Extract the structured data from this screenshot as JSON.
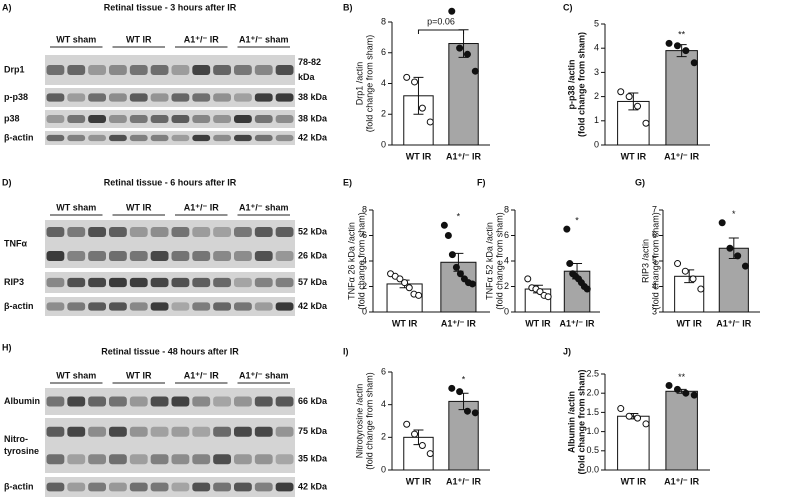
{
  "blots": [
    {
      "panel": "A)",
      "title": "Retinal tissue - 3 hours after IR",
      "groups": [
        "WT sham",
        "WT IR",
        "A1⁺/⁻ IR",
        "A1⁺/⁻ sham"
      ],
      "rows": [
        {
          "label": [
            "Drp1"
          ],
          "kda": [
            "78-82",
            "kDa"
          ]
        },
        {
          "label": [
            "p-p38"
          ],
          "kda": [
            "38 kDa"
          ]
        },
        {
          "label": [
            "p38"
          ],
          "kda": [
            "38 kDa"
          ]
        },
        {
          "label": [
            "β-actin"
          ],
          "kda": [
            "42 kDa"
          ]
        }
      ]
    },
    {
      "panel": "D)",
      "title": "Retinal tissue - 6 hours after IR",
      "groups": [
        "WT sham",
        "WT IR",
        "A1⁺/⁻ IR",
        "A1⁺/⁻ sham"
      ],
      "rows": [
        {
          "label": [
            "TNFα"
          ],
          "kda": [
            "52 kDa",
            "26 kDa"
          ]
        },
        {
          "label": [
            "RIP3"
          ],
          "kda": [
            "57 kDa"
          ]
        },
        {
          "label": [
            "β-actin"
          ],
          "kda": [
            "42 kDa"
          ]
        }
      ]
    },
    {
      "panel": "H)",
      "title": "Retinal tissue - 48 hours after IR",
      "groups": [
        "WT sham",
        "WT IR",
        "A1⁺/⁻ IR",
        "A1⁺/⁻ sham"
      ],
      "rows": [
        {
          "label": [
            "Albumin"
          ],
          "kda": [
            "66 kDa"
          ]
        },
        {
          "label": [
            "Nitro-",
            "tyrosine"
          ],
          "kda": [
            "75 kDa",
            "35 kDa"
          ]
        },
        {
          "label": [
            "β-actin"
          ],
          "kda": [
            "42 kDa"
          ]
        }
      ]
    }
  ],
  "chart_data": [
    {
      "type": "bar",
      "panel": "B)",
      "ylabel": [
        "Drp1 /actin",
        "(fold change from sham)"
      ],
      "categories": [
        "WT IR",
        "A1⁺/⁻ IR"
      ],
      "colors": [
        "#ffffff",
        "#a6a6a6"
      ],
      "values": [
        3.2,
        6.6
      ],
      "errors": [
        1.2,
        0.9
      ],
      "points": [
        [
          4.4,
          4.1,
          2.4,
          1.5
        ],
        [
          8.7,
          6.3,
          5.9,
          4.8
        ]
      ],
      "ylim": [
        0,
        8
      ],
      "yticks": [
        0,
        2,
        4,
        6,
        8
      ],
      "annotation": "p=0.06",
      "bracket": true
    },
    {
      "type": "bar",
      "panel": "C)",
      "ylabel": [
        "p-p38 /actin",
        "(fold change from sham)"
      ],
      "categories": [
        "WT IR",
        "A1⁺/⁻ IR"
      ],
      "colors": [
        "#ffffff",
        "#a6a6a6"
      ],
      "values": [
        1.8,
        3.9
      ],
      "errors": [
        0.35,
        0.25
      ],
      "points": [
        [
          2.2,
          2.0,
          1.6,
          0.9
        ],
        [
          4.2,
          4.1,
          3.9,
          3.4
        ]
      ],
      "ylim": [
        0,
        5
      ],
      "yticks": [
        0,
        1,
        2,
        3,
        4,
        5
      ],
      "annotation": "**"
    },
    {
      "type": "bar",
      "panel": "E)",
      "ylabel": [
        "TNFα 26 kDa /actin",
        "(fold change from sham)"
      ],
      "categories": [
        "WT IR",
        "A1⁺/⁻ IR"
      ],
      "colors": [
        "#ffffff",
        "#a6a6a6"
      ],
      "values": [
        2.2,
        3.9
      ],
      "errors": [
        0.3,
        0.7
      ],
      "points": [
        [
          3.0,
          2.8,
          2.6,
          2.3,
          1.9,
          1.4,
          1.3
        ],
        [
          6.8,
          6.0,
          4.5,
          3.5,
          3.0,
          2.6,
          2.3,
          2.2
        ]
      ],
      "ylim": [
        0,
        8
      ],
      "yticks": [
        0,
        2,
        4,
        6,
        8
      ],
      "annotation": "*"
    },
    {
      "type": "bar",
      "panel": "F)",
      "ylabel": [
        "TNFα 52 kDa /actin",
        "(fold change from sham)"
      ],
      "categories": [
        "WT IR",
        "A1⁺/⁻ IR"
      ],
      "colors": [
        "#ffffff",
        "#a6a6a6"
      ],
      "values": [
        1.8,
        3.2
      ],
      "errors": [
        0.3,
        0.6
      ],
      "points": [
        [
          2.6,
          1.9,
          1.8,
          1.6,
          1.3,
          1.2
        ],
        [
          6.5,
          3.8,
          3.0,
          2.8,
          2.6,
          2.3,
          2.0,
          1.8
        ]
      ],
      "ylim": [
        0,
        8
      ],
      "yticks": [
        0,
        2,
        4,
        6,
        8
      ],
      "annotation": "*"
    },
    {
      "type": "bar",
      "panel": "G)",
      "ylabel": [
        "RIP3 /actin",
        "(fold change from sham)"
      ],
      "categories": [
        "WT IR",
        "A1⁺/⁻ IR"
      ],
      "colors": [
        "#ffffff",
        "#a6a6a6"
      ],
      "values": [
        4.4,
        5.5
      ],
      "errors": [
        0.25,
        0.4
      ],
      "points": [
        [
          4.9,
          4.6,
          4.3,
          3.9
        ],
        [
          6.5,
          5.5,
          5.2,
          4.8
        ]
      ],
      "ylim": [
        3,
        7
      ],
      "yticks": [
        3,
        4,
        5,
        6,
        7
      ],
      "annotation": "*"
    },
    {
      "type": "bar",
      "panel": "I)",
      "ylabel": [
        "Nitrotyrosine /actin",
        "(fold change from sham)"
      ],
      "categories": [
        "WT IR",
        "A1⁺/⁻ IR"
      ],
      "colors": [
        "#ffffff",
        "#a6a6a6"
      ],
      "values": [
        2.0,
        4.2
      ],
      "errors": [
        0.45,
        0.5
      ],
      "points": [
        [
          2.8,
          2.2,
          1.5,
          1.0
        ],
        [
          5.0,
          4.8,
          3.6,
          3.5
        ]
      ],
      "ylim": [
        0,
        6
      ],
      "yticks": [
        0,
        2,
        4,
        6
      ],
      "annotation": "*"
    },
    {
      "type": "bar",
      "panel": "J)",
      "ylabel": [
        "Albumin /actin",
        "(fold change from sham)"
      ],
      "categories": [
        "WT IR",
        "A1⁺/⁻ IR"
      ],
      "colors": [
        "#ffffff",
        "#a6a6a6"
      ],
      "values": [
        1.4,
        2.05
      ],
      "errors": [
        0.07,
        0.05
      ],
      "points": [
        [
          1.6,
          1.4,
          1.35,
          1.2
        ],
        [
          2.2,
          2.1,
          2.0,
          1.95
        ]
      ],
      "ylim": [
        0,
        2.5
      ],
      "yticks": [
        {
          "value": 0,
          "label": "0.0"
        },
        0.5,
        {
          "value": 1,
          "label": "1.0"
        },
        1.5,
        {
          "value": 2,
          "label": "2.0"
        },
        2.5
      ],
      "annotation": "**"
    }
  ]
}
